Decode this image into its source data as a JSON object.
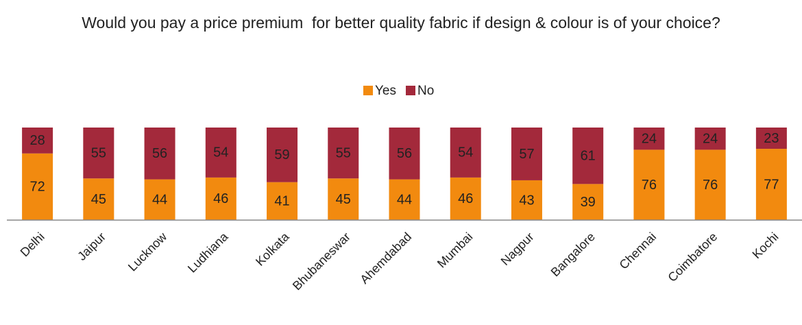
{
  "chart_data": {
    "type": "stacked_bar",
    "title": "Would you pay a price premium  for better quality fabric if design & colour is of your choice?",
    "categories": [
      "Delhi",
      "Jaipur",
      "Lucknow",
      "Ludhiana",
      "Kolkata",
      "Bhubaneswar",
      "Ahemdabad",
      "Mumbai",
      "Nagpur",
      "Bangalore",
      "Chennai",
      "Coimbatore",
      "Kochi"
    ],
    "series": [
      {
        "name": "Yes",
        "color": "#f28a0f",
        "values": [
          72,
          45,
          44,
          46,
          41,
          45,
          44,
          46,
          43,
          39,
          76,
          76,
          77
        ]
      },
      {
        "name": "No",
        "color": "#a3293b",
        "values": [
          28,
          55,
          56,
          54,
          59,
          55,
          56,
          54,
          57,
          61,
          24,
          24,
          23
        ]
      }
    ],
    "ylim": [
      0,
      100
    ],
    "legend": "top"
  }
}
